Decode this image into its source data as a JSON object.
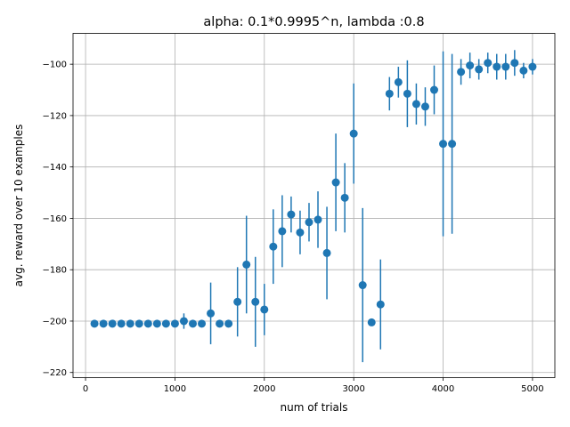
{
  "chart_data": {
    "type": "scatter",
    "title": "alpha: 0.1*0.9995^n, lambda :0.8",
    "xlabel": "num of trials",
    "ylabel": "avg. reward over 10 examples",
    "xlim": [
      -140,
      5250
    ],
    "ylim": [
      -222,
      -88
    ],
    "xticks": [
      0,
      1000,
      2000,
      3000,
      4000,
      5000
    ],
    "yticks": [
      -220,
      -200,
      -180,
      -160,
      -140,
      -120,
      -100
    ],
    "xtick_labels": [
      "0",
      "1000",
      "2000",
      "3000",
      "4000",
      "5000"
    ],
    "ytick_labels": [
      "−220",
      "−200",
      "−180",
      "−160",
      "−140",
      "−120",
      "−100"
    ],
    "grid": true,
    "color": "#1f77b4",
    "series": [
      {
        "name": "avg reward",
        "x": [
          100,
          200,
          300,
          400,
          500,
          600,
          700,
          800,
          900,
          1000,
          1100,
          1200,
          1300,
          1400,
          1500,
          1600,
          1700,
          1800,
          1900,
          2000,
          2100,
          2200,
          2300,
          2400,
          2500,
          2600,
          2700,
          2800,
          2900,
          3000,
          3100,
          3200,
          3300,
          3400,
          3500,
          3600,
          3700,
          3800,
          3900,
          4000,
          4100,
          4200,
          4300,
          4400,
          4500,
          4600,
          4700,
          4800,
          4900,
          5000
        ],
        "y": [
          -201,
          -201,
          -201,
          -201,
          -201,
          -201,
          -201,
          -201,
          -201,
          -201,
          -200,
          -201,
          -201,
          -197,
          -201,
          -201,
          -192.5,
          -178,
          -192.5,
          -195.5,
          -171,
          -165,
          -158.5,
          -165.5,
          -161.5,
          -160.5,
          -173.5,
          -146,
          -152,
          -127,
          -186,
          -200.5,
          -193.5,
          -111.5,
          -107,
          -111.5,
          -115.5,
          -116.5,
          -110,
          -131,
          -131,
          -103,
          -100.5,
          -102,
          -99.5,
          -101,
          -101,
          -99.5,
          -102.5,
          -101
        ],
        "yerr": [
          0,
          0,
          0,
          0,
          0,
          0,
          0,
          0,
          0,
          0,
          3,
          0,
          0,
          12,
          0,
          0,
          13.5,
          19,
          17.5,
          10,
          14.5,
          14,
          7,
          8.5,
          7.5,
          11,
          18,
          19,
          13.5,
          19.5,
          30,
          0,
          17.5,
          6.5,
          6,
          13,
          8,
          7.5,
          9.5,
          36,
          35,
          5,
          5,
          4,
          4,
          5,
          5,
          5,
          3,
          3
        ]
      }
    ]
  }
}
